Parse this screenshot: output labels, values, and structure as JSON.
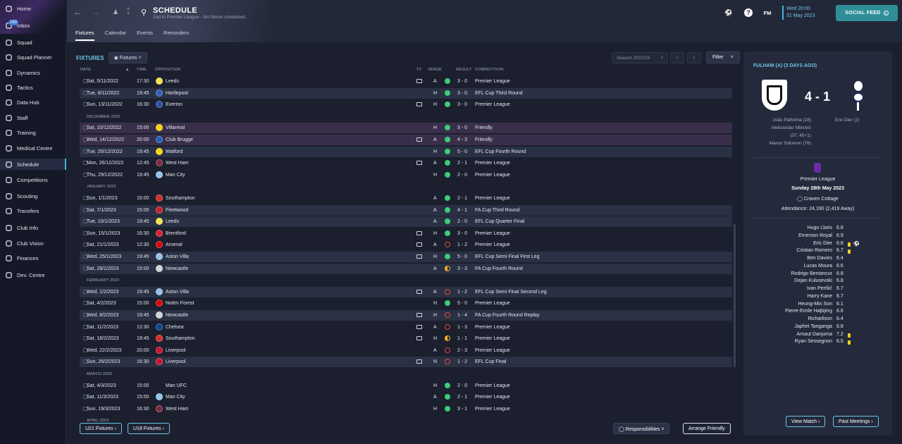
{
  "sidebar": {
    "items": [
      {
        "label": "Home",
        "icon": "home-icon"
      },
      {
        "label": "Inbox",
        "icon": "inbox-icon",
        "badge": "160"
      },
      {
        "label": "Squad",
        "icon": "squad-icon"
      },
      {
        "label": "Squad Planner",
        "icon": "squad-planner-icon"
      },
      {
        "label": "Dynamics",
        "icon": "dynamics-icon"
      },
      {
        "label": "Tactics",
        "icon": "tactics-icon"
      },
      {
        "label": "Data Hub",
        "icon": "data-hub-icon"
      },
      {
        "label": "Staff",
        "icon": "staff-icon"
      },
      {
        "label": "Training",
        "icon": "training-icon"
      },
      {
        "label": "Medical Centre",
        "icon": "medical-icon"
      },
      {
        "label": "Schedule",
        "icon": "calendar-icon",
        "active": true
      },
      {
        "label": "Competitions",
        "icon": "trophy-icon"
      },
      {
        "label": "Scouting",
        "icon": "scouting-icon"
      },
      {
        "label": "Transfers",
        "icon": "transfers-icon"
      },
      {
        "label": "Club Info",
        "icon": "club-info-icon"
      },
      {
        "label": "Club Vision",
        "icon": "club-vision-icon"
      },
      {
        "label": "Finances",
        "icon": "finances-icon"
      },
      {
        "label": "Dev. Centre",
        "icon": "dev-centre-icon"
      }
    ]
  },
  "header": {
    "title": "SCHEDULE",
    "subtitle": "2nd in Premier League - No fixture scheduled.",
    "tabs": [
      "Fixtures",
      "Calendar",
      "Events",
      "Reminders"
    ],
    "date_line1": "Wed 20:00",
    "date_line2": "31 May 2023",
    "social_feed": "SOCIAL FEED",
    "fm_label": "FM"
  },
  "fixtures": {
    "title": "FIXTURES",
    "view_button": "Fixtures",
    "season": "Season 2022/23",
    "filter": "Filter",
    "columns": {
      "date": "DATE",
      "time": "TIME",
      "opposition": "OPPOSITION",
      "tv": "TV",
      "venue": "VENUE",
      "result": "RESULT",
      "competition": "COMPETITION"
    },
    "rows": [
      {
        "type": "match",
        "date": "Sat, 5/11/2022",
        "time": "17:30",
        "opp": "Leeds",
        "tv": true,
        "venue": "A",
        "res": "w",
        "score": "3 - 0",
        "comp": "Premier League",
        "crest": "#f3e04a",
        "bg": ""
      },
      {
        "type": "match",
        "date": "Tue, 8/11/2022",
        "time": "19:45",
        "opp": "Hartlepool",
        "tv": false,
        "venue": "H",
        "res": "w",
        "score": "3 - 0",
        "comp": "EFL Cup Third Round",
        "crest": "#2e5fb5",
        "bg": "grey"
      },
      {
        "type": "match",
        "date": "Sun, 13/11/2022",
        "time": "16:30",
        "opp": "Everton",
        "tv": true,
        "venue": "H",
        "res": "w",
        "score": "3 - 0",
        "comp": "Premier League",
        "crest": "#2b4fa6",
        "bg": ""
      },
      {
        "type": "month",
        "label": "DECEMBER 2022"
      },
      {
        "type": "match",
        "date": "Sat, 10/12/2022",
        "time": "15:00",
        "opp": "Villarreal",
        "tv": false,
        "venue": "H",
        "res": "w",
        "score": "3 - 0",
        "comp": "Friendly",
        "crest": "#f6d40d",
        "bg": "purple"
      },
      {
        "type": "match",
        "date": "Wed, 14/12/2022",
        "time": "20:00",
        "opp": "Club Brugge",
        "tv": true,
        "venue": "A",
        "res": "w",
        "score": "4 - 3",
        "comp": "Friendly",
        "crest": "#1d5fb8",
        "bg": "purple"
      },
      {
        "type": "match",
        "date": "Tue, 20/12/2022",
        "time": "19:45",
        "opp": "Watford",
        "tv": false,
        "venue": "H",
        "res": "w",
        "score": "5 - 0",
        "comp": "EFL Cup Fourth Round",
        "crest": "#f6d40d",
        "bg": "grey"
      },
      {
        "type": "match",
        "date": "Mon, 26/12/2022",
        "time": "12:45",
        "opp": "West Ham",
        "tv": true,
        "venue": "A",
        "res": "w",
        "score": "2 - 1",
        "comp": "Premier League",
        "crest": "#7a2b3c",
        "bg": ""
      },
      {
        "type": "match",
        "date": "Thu, 29/12/2022",
        "time": "19:45",
        "opp": "Man City",
        "tv": false,
        "venue": "H",
        "res": "w",
        "score": "2 - 0",
        "comp": "Premier League",
        "crest": "#8fc5ea",
        "bg": ""
      },
      {
        "type": "month",
        "label": "JANUARY 2023"
      },
      {
        "type": "match",
        "date": "Sun, 1/1/2023",
        "time": "15:00",
        "opp": "Southampton",
        "tv": false,
        "venue": "A",
        "res": "w",
        "score": "2 - 1",
        "comp": "Premier League",
        "crest": "#d62b2b",
        "bg": ""
      },
      {
        "type": "match",
        "date": "Sat, 7/1/2023",
        "time": "15:00",
        "opp": "Fleetwood",
        "tv": false,
        "venue": "A",
        "res": "w",
        "score": "4 - 1",
        "comp": "FA Cup Third Round",
        "crest": "#c8202c",
        "bg": "grey"
      },
      {
        "type": "match",
        "date": "Tue, 10/1/2023",
        "time": "19:45",
        "opp": "Leeds",
        "tv": false,
        "venue": "A",
        "res": "w",
        "score": "2 - 0",
        "comp": "EFL Cup Quarter Final",
        "crest": "#f3e04a",
        "bg": "grey"
      },
      {
        "type": "match",
        "date": "Sun, 15/1/2023",
        "time": "16:30",
        "opp": "Brentford",
        "tv": true,
        "venue": "H",
        "res": "w",
        "score": "3 - 0",
        "comp": "Premier League",
        "crest": "#d7212a",
        "bg": ""
      },
      {
        "type": "match",
        "date": "Sat, 21/1/2023",
        "time": "12:30",
        "opp": "Arsenal",
        "tv": true,
        "venue": "A",
        "res": "l",
        "score": "1 - 2",
        "comp": "Premier League",
        "crest": "#db0007",
        "bg": ""
      },
      {
        "type": "match",
        "date": "Wed, 25/1/2023",
        "time": "19:45",
        "opp": "Aston Villa",
        "tv": true,
        "venue": "H",
        "res": "w",
        "score": "5 - 0",
        "comp": "EFL Cup Semi Final First Leg",
        "crest": "#95bfe5",
        "bg": "grey"
      },
      {
        "type": "match",
        "date": "Sat, 28/1/2023",
        "time": "15:00",
        "opp": "Newcastle",
        "tv": false,
        "venue": "A",
        "res": "d",
        "score": "3 - 3",
        "comp": "FA Cup Fourth Round",
        "crest": "#cfd3da",
        "bg": "grey"
      },
      {
        "type": "month",
        "label": "FEBRUARY 2023"
      },
      {
        "type": "match",
        "date": "Wed, 1/2/2023",
        "time": "19:45",
        "opp": "Aston Villa",
        "tv": true,
        "venue": "A",
        "res": "l",
        "score": "1 - 2",
        "comp": "EFL Cup Semi Final Second Leg",
        "crest": "#95bfe5",
        "bg": "grey"
      },
      {
        "type": "match",
        "date": "Sat, 4/2/2023",
        "time": "15:00",
        "opp": "Nottm Forest",
        "tv": false,
        "venue": "H",
        "res": "w",
        "score": "5 - 0",
        "comp": "Premier League",
        "crest": "#dd0000",
        "bg": ""
      },
      {
        "type": "match",
        "date": "Wed, 8/2/2023",
        "time": "19:45",
        "opp": "Newcastle",
        "tv": true,
        "venue": "H",
        "res": "l",
        "score": "1 - 4",
        "comp": "FA Cup Fourth Round Replay",
        "crest": "#cfd3da",
        "bg": "grey"
      },
      {
        "type": "match",
        "date": "Sat, 11/2/2023",
        "time": "12:30",
        "opp": "Chelsea",
        "tv": true,
        "venue": "A",
        "res": "l",
        "score": "1 - 3",
        "comp": "Premier League",
        "crest": "#034694",
        "bg": ""
      },
      {
        "type": "match",
        "date": "Sat, 18/2/2023",
        "time": "19:45",
        "opp": "Southampton",
        "tv": true,
        "venue": "H",
        "res": "d",
        "score": "1 - 1",
        "comp": "Premier League",
        "crest": "#d62b2b",
        "bg": ""
      },
      {
        "type": "match",
        "date": "Wed, 22/2/2023",
        "time": "20:00",
        "opp": "Liverpool",
        "tv": false,
        "venue": "A",
        "res": "l",
        "score": "2 - 3",
        "comp": "Premier League",
        "crest": "#c8102e",
        "bg": ""
      },
      {
        "type": "match",
        "date": "Sun, 26/2/2023",
        "time": "16:30",
        "opp": "Liverpool",
        "tv": true,
        "venue": "N",
        "res": "l",
        "score": "1 - 2",
        "comp": "EFL Cup Final",
        "crest": "#c8102e",
        "bg": "grey"
      },
      {
        "type": "month",
        "label": "MARCH 2023"
      },
      {
        "type": "match",
        "date": "Sat, 4/3/2023",
        "time": "15:00",
        "opp": "Man UFC",
        "tv": false,
        "venue": "H",
        "res": "w",
        "score": "2 - 0",
        "comp": "Premier League",
        "crest": "",
        "bg": ""
      },
      {
        "type": "match",
        "date": "Sat, 11/3/2023",
        "time": "15:00",
        "opp": "Man City",
        "tv": false,
        "venue": "A",
        "res": "w",
        "score": "2 - 1",
        "comp": "Premier League",
        "crest": "#8fc5ea",
        "bg": ""
      },
      {
        "type": "match",
        "date": "Sun, 19/3/2023",
        "time": "16:30",
        "opp": "West Ham",
        "tv": false,
        "venue": "H",
        "res": "w",
        "score": "3 - 1",
        "comp": "Premier League",
        "crest": "#7a2b3c",
        "bg": ""
      },
      {
        "type": "month",
        "label": "APRIL 2023"
      }
    ],
    "u21_button": "U21 Fixtures",
    "u18_button": "U18 Fixtures",
    "responsibilities_button": "Responsibilities",
    "arrange_friendly_button": "Arrange Friendly"
  },
  "match_panel": {
    "title": "FULHAM (A) (3 DAYS AGO)",
    "score": "4 - 1",
    "home_scorers": [
      "João Palhinha (28)",
      "Aleksandar Mitrović",
      "(37, 45+1)",
      "Manor Solomon (76)"
    ],
    "away_scorers": [
      "Eric Dier (2)"
    ],
    "competition": "Premier League",
    "match_date": "Sunday 28th May 2023",
    "stadium": "Craven Cottage",
    "attendance": "Attendance: 24,190 (2,419 Away)",
    "ratings": [
      {
        "name": "Hugo Lloris",
        "rating": "6.8",
        "yellow": false,
        "goal": false
      },
      {
        "name": "Emerson Royal",
        "rating": "6.9",
        "yellow": false,
        "goal": false
      },
      {
        "name": "Eric Dier",
        "rating": "6.8",
        "yellow": true,
        "goal": true
      },
      {
        "name": "Cristian Romero",
        "rating": "6.7",
        "yellow": true,
        "goal": false
      },
      {
        "name": "Ben Davies",
        "rating": "6.4",
        "yellow": false,
        "goal": false
      },
      {
        "name": "Lucas Moura",
        "rating": "6.6",
        "yellow": false,
        "goal": false
      },
      {
        "name": "Rodrigo Bentancur",
        "rating": "6.8",
        "yellow": false,
        "goal": false
      },
      {
        "name": "Dejan Kulusevski",
        "rating": "6.8",
        "yellow": false,
        "goal": false
      },
      {
        "name": "Ivan Perišić",
        "rating": "6.7",
        "yellow": false,
        "goal": false
      },
      {
        "name": "Harry Kane",
        "rating": "6.7",
        "yellow": false,
        "goal": false
      },
      {
        "name": "Heung-Min Son",
        "rating": "6.1",
        "yellow": false,
        "goal": false
      },
      {
        "name": "Pierre-Emile Højbjerg",
        "rating": "6.6",
        "yellow": false,
        "goal": false
      },
      {
        "name": "Richarlison",
        "rating": "6.4",
        "yellow": false,
        "goal": false
      },
      {
        "name": "Japhet Tanganga",
        "rating": "6.8",
        "yellow": false,
        "goal": false
      },
      {
        "name": "Arnaut Danjuma",
        "rating": "7.2",
        "yellow": true,
        "goal": false
      },
      {
        "name": "Ryan Sessegnon",
        "rating": "6.5",
        "yellow": true,
        "goal": false
      }
    ],
    "view_match_button": "View Match",
    "past_meetings_button": "Past Meetings"
  },
  "colors": {
    "accent": "#6ec7e8",
    "win": "#3ccc7a",
    "loss": "#e0493c",
    "draw": "#f0b030",
    "social": "#2e8f96"
  }
}
